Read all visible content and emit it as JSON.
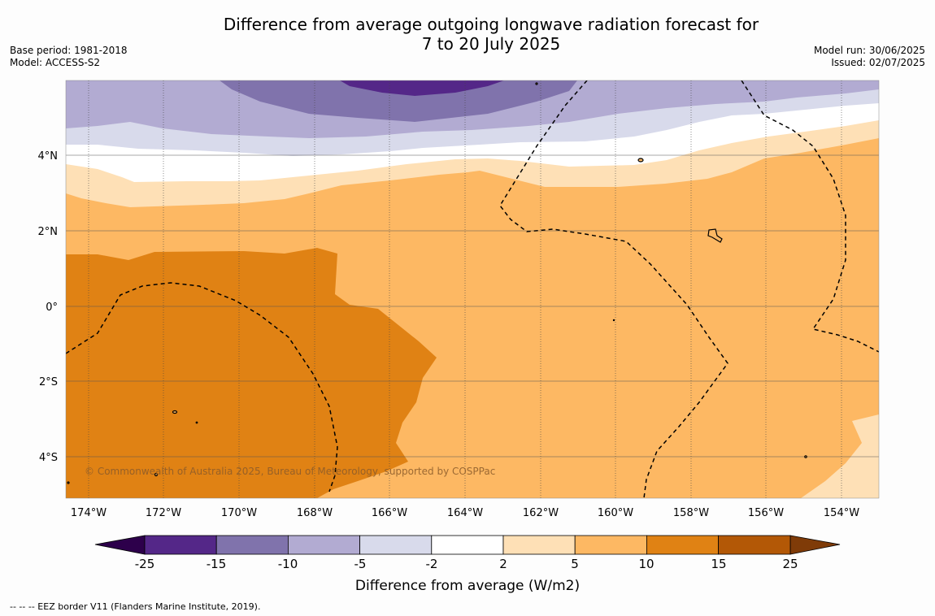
{
  "title_line1": "Difference from average outgoing longwave radiation forecast for",
  "title_line2": "7 to 20 July 2025",
  "base_period": "Base period: 1981-2018",
  "model": "Model: ACCESS-S2",
  "model_run": "Model run: 30/06/2025",
  "issued": "Issued: 02/07/2025",
  "copyright": "© Commonwealth of Australia 2025, Bureau of Meteorology, supported by COSPPac",
  "lat_labels": [
    "4°N",
    "2°N",
    "0°",
    "2°S",
    "4°S"
  ],
  "lon_labels": [
    "174°W",
    "172°W",
    "170°W",
    "168°W",
    "166°W",
    "164°W",
    "162°W",
    "160°W",
    "158°W",
    "156°W",
    "154°W"
  ],
  "colorbar": {
    "ticks": [
      "-25",
      "-15",
      "-10",
      "-5",
      "-2",
      "2",
      "5",
      "10",
      "15",
      "25"
    ],
    "colors": [
      "#542788",
      "#8073ac",
      "#b2abd2",
      "#d8daeb",
      "#ffffff",
      "#fee0b6",
      "#fdb863",
      "#e08214",
      "#b35806"
    ],
    "under_color": "#2d004b",
    "over_color": "#7f3b08",
    "label": "Difference from average (W/m2)"
  },
  "footer": "--  --  -- EEZ border V11 (Flanders Marine Institute, 2019)."
}
